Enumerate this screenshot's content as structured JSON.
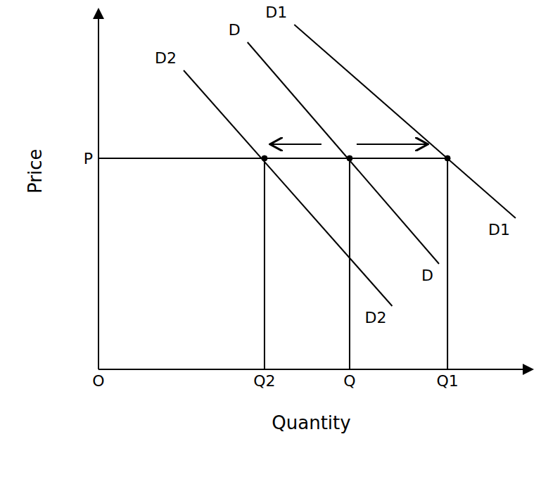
{
  "chart_data": {
    "type": "line",
    "x_label": "Quantity",
    "y_label": "Price",
    "xlim": [
      0,
      10
    ],
    "ylim": [
      0,
      10
    ],
    "xticks": [
      {
        "value": 0,
        "label": "O"
      },
      {
        "value": 3.9,
        "label": "Q2"
      },
      {
        "value": 5.9,
        "label": "Q"
      },
      {
        "value": 8.2,
        "label": "Q1"
      }
    ],
    "yticks": [
      {
        "value": 6,
        "label": "P"
      }
    ],
    "grid": false,
    "tick_labels": true,
    "series": [
      {
        "name": "D2",
        "color": "#000000",
        "x": [
          2.0,
          6.9
        ],
        "values": [
          8.5,
          1.8
        ]
      },
      {
        "name": "D",
        "color": "#000000",
        "x": [
          3.5,
          8.0
        ],
        "values": [
          9.3,
          3.0
        ]
      },
      {
        "name": "D1",
        "color": "#000000",
        "x": [
          4.6,
          9.8
        ],
        "values": [
          9.8,
          4.3
        ]
      }
    ]
  }
}
